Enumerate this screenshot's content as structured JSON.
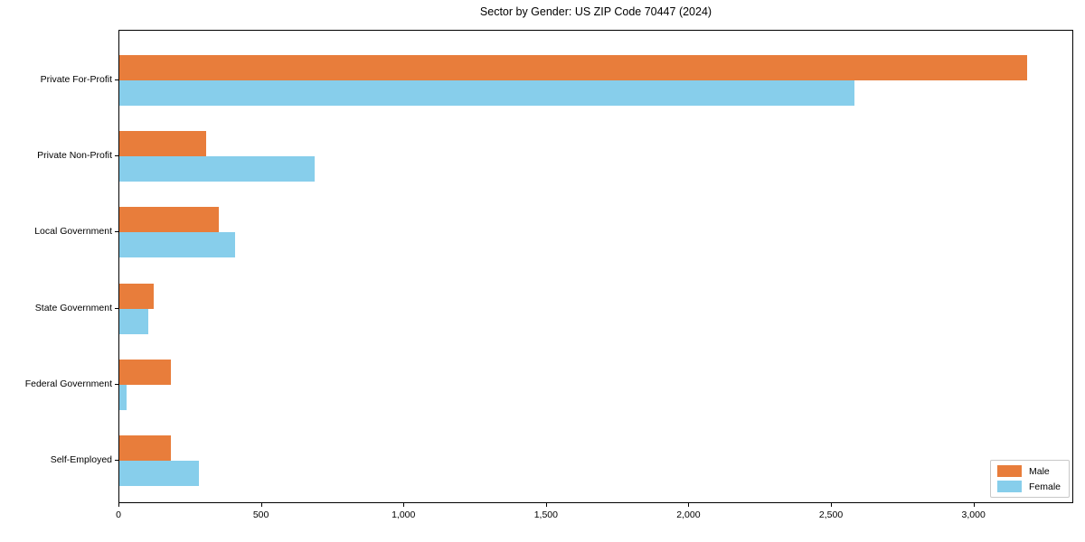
{
  "chart_data": {
    "type": "bar",
    "orientation": "horizontal",
    "title": "Sector by Gender: US ZIP Code 70447 (2024)",
    "categories": [
      "Private For-Profit",
      "Private Non-Profit",
      "Local Government",
      "State Government",
      "Federal Government",
      "Self-Employed"
    ],
    "series": [
      {
        "name": "Male",
        "color": "#E87D3B",
        "values": [
          3185,
          305,
          350,
          120,
          180,
          180
        ]
      },
      {
        "name": "Female",
        "color": "#87CEEB",
        "values": [
          2580,
          685,
          405,
          100,
          25,
          280
        ]
      }
    ],
    "xlim": [
      0,
      3350
    ],
    "xticks": [
      0,
      500,
      1000,
      1500,
      2000,
      2500,
      3000
    ],
    "xlabel": "",
    "ylabel": "",
    "grid": false,
    "legend": {
      "position": "lower right",
      "entries": [
        "Male",
        "Female"
      ]
    },
    "colors": {
      "male": "#E87D3B",
      "female": "#87CEEB",
      "axis": "#000000",
      "background": "#ffffff"
    }
  }
}
